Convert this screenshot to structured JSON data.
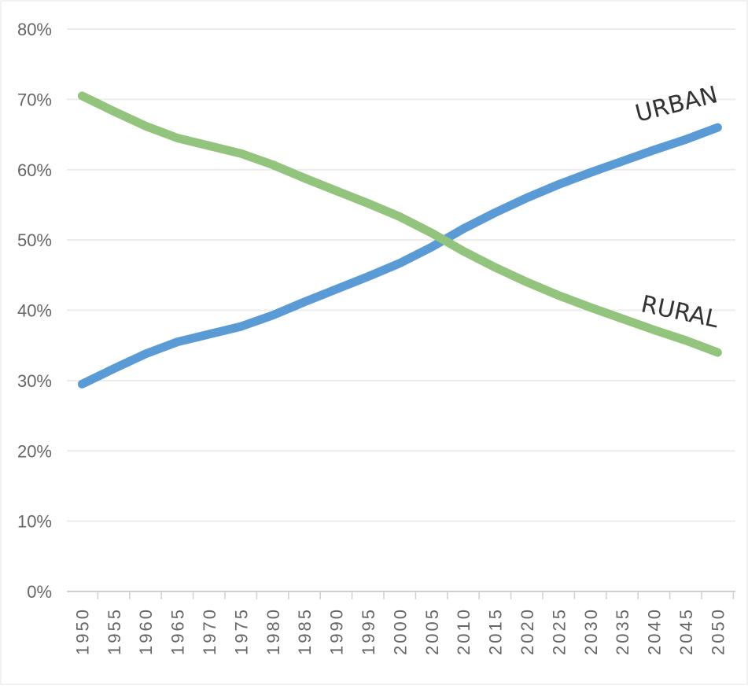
{
  "chart_data": {
    "type": "line",
    "x": [
      1950,
      1955,
      1960,
      1965,
      1970,
      1975,
      1980,
      1985,
      1990,
      1995,
      2000,
      2005,
      2010,
      2015,
      2020,
      2025,
      2030,
      2035,
      2040,
      2045,
      2050
    ],
    "series": [
      {
        "name": "URBAN",
        "color": "#5b9bd5",
        "values": [
          29.5,
          31.7,
          33.8,
          35.5,
          36.6,
          37.7,
          39.3,
          41.2,
          43,
          44.8,
          46.7,
          49,
          51.6,
          53.9,
          56,
          57.9,
          59.6,
          61.2,
          62.8,
          64.3,
          66
        ]
      },
      {
        "name": "RURAL",
        "color": "#93c47d",
        "values": [
          70.5,
          68.3,
          66.2,
          64.5,
          63.4,
          62.3,
          60.7,
          58.8,
          57,
          55.2,
          53.3,
          51,
          48.4,
          46.1,
          44,
          42.1,
          40.4,
          38.8,
          37.2,
          35.7,
          34
        ]
      }
    ],
    "xlim": [
      1947.6,
      2052.8
    ],
    "ylim": [
      0,
      80
    ],
    "yticks": [
      {
        "value": 0,
        "label": "0%"
      },
      {
        "value": 10,
        "label": "10%"
      },
      {
        "value": 20,
        "label": "20%"
      },
      {
        "value": 30,
        "label": "30%"
      },
      {
        "value": 40,
        "label": "40%"
      },
      {
        "value": 50,
        "label": "50%"
      },
      {
        "value": 60,
        "label": "60%"
      },
      {
        "value": 70,
        "label": "70%"
      },
      {
        "value": 80,
        "label": "80%"
      }
    ],
    "grid": true
  }
}
